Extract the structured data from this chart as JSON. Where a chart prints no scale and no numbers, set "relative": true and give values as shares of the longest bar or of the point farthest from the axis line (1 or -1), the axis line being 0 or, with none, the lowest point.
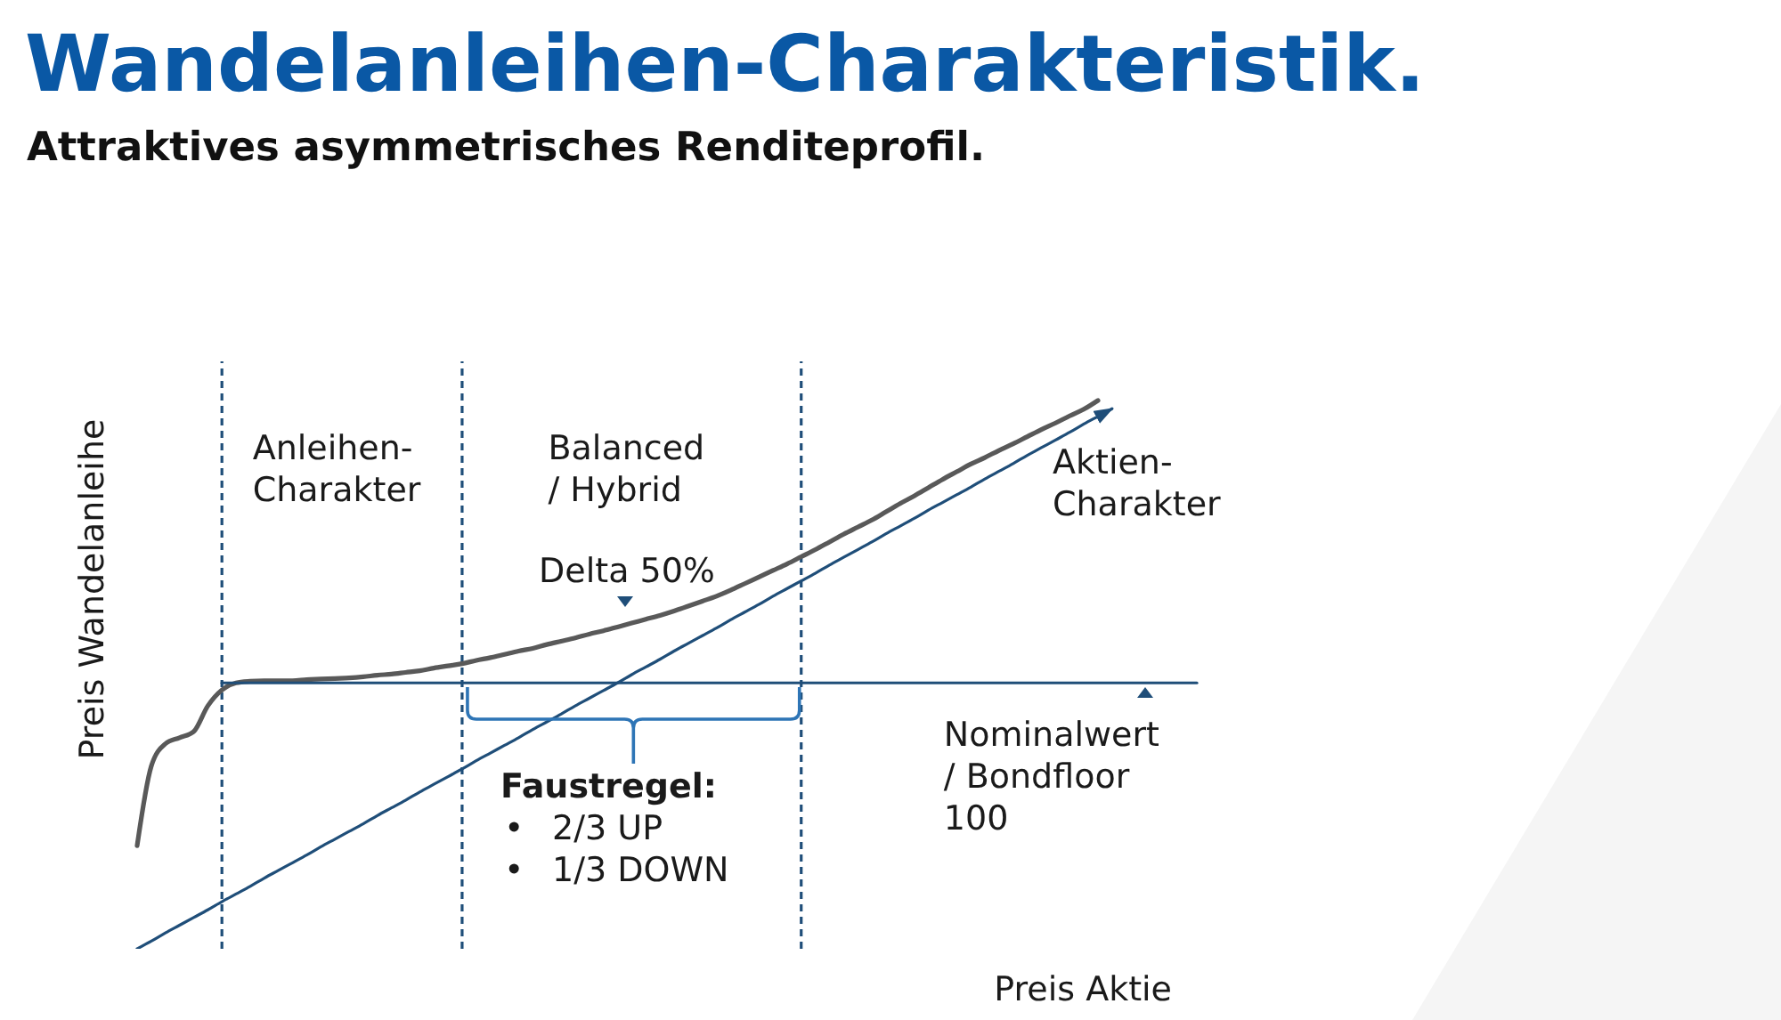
{
  "chart_data": {
    "type": "line",
    "relative": true,
    "title": "Wandelanleihen-Charakteristik.",
    "subtitle": "Attraktives asymmetrisches Renditeprofil.",
    "xlabel": "Preis Aktie",
    "ylabel": "Preis Wandelanleihe",
    "categories": [
      null,
      null,
      null,
      null,
      null,
      null,
      null,
      null,
      null,
      null,
      null,
      null,
      null,
      null,
      null,
      null,
      null,
      null,
      null,
      null,
      null,
      null,
      null,
      null,
      null,
      null,
      null,
      null,
      null,
      null,
      null,
      null,
      null,
      null,
      null,
      null,
      null,
      null,
      null,
      null,
      null,
      null,
      null,
      null,
      null,
      null,
      null,
      null,
      null,
      null,
      null,
      null,
      null,
      null,
      null,
      null,
      null,
      null,
      null,
      null,
      null,
      null,
      null,
      null,
      null,
      null,
      null,
      null,
      null,
      null,
      null,
      null,
      null,
      null,
      null,
      null
    ],
    "series": [
      {
        "color": "#595959",
        "values": [
          0.188,
          0.333,
          0.374,
          0.385,
          0.396,
          0.443,
          0.472,
          0.485,
          0.488,
          0.489,
          0.489,
          0.489,
          0.491,
          0.492,
          0.493,
          0.494,
          0.496,
          0.499,
          0.501,
          0.504,
          0.507,
          0.512,
          0.516,
          0.52,
          0.526,
          0.531,
          0.537,
          0.543,
          0.548,
          0.555,
          0.561,
          0.567,
          0.574,
          0.58,
          0.587,
          0.594,
          0.601,
          0.608,
          0.616,
          0.625,
          0.634,
          0.643,
          0.654,
          0.666,
          0.678,
          0.69,
          0.702,
          0.715,
          0.728,
          0.742,
          0.756,
          0.769,
          0.782,
          0.797,
          0.812,
          0.826,
          0.841,
          0.856,
          0.87,
          0.884,
          0.896,
          0.909,
          0.921,
          0.934,
          0.947,
          0.959,
          0.972,
          0.984,
          1,
          null,
          null,
          null,
          null,
          null,
          null,
          null
        ]
      },
      {
        "color": "#1f4e79",
        "values": [
          0,
          0.014,
          0.029,
          0.043,
          0.057,
          0.071,
          0.086,
          0.1,
          0.114,
          0.129,
          0.143,
          0.157,
          0.171,
          0.186,
          0.2,
          0.214,
          0.228,
          0.243,
          0.257,
          0.271,
          0.286,
          0.3,
          0.314,
          0.328,
          0.343,
          0.357,
          0.371,
          0.385,
          0.4,
          0.414,
          0.428,
          0.443,
          0.457,
          0.471,
          0.485,
          0.5,
          0.514,
          0.528,
          0.543,
          0.557,
          0.571,
          0.585,
          0.6,
          0.614,
          0.628,
          0.643,
          0.657,
          0.671,
          0.685,
          0.7,
          0.714,
          0.728,
          0.742,
          0.757,
          0.771,
          0.785,
          0.8,
          0.814,
          0.828,
          0.842,
          0.857,
          0.871,
          0.885,
          0.9,
          0.914,
          0.928,
          0.942,
          0.957,
          0.971,
          0.985,
          null,
          null,
          null,
          null,
          null,
          null
        ]
      },
      {
        "color": "#1f4e79",
        "values": [
          null,
          null,
          null,
          null,
          null,
          null,
          0.485,
          0.485,
          0.485,
          0.485,
          0.485,
          0.485,
          0.485,
          0.485,
          0.485,
          0.485,
          0.485,
          0.485,
          0.485,
          0.485,
          0.485,
          0.485,
          0.485,
          0.485,
          0.485,
          0.485,
          0.485,
          0.485,
          0.485,
          0.485,
          0.485,
          0.485,
          0.485,
          0.485,
          0.485,
          0.485,
          0.485,
          0.485,
          0.485,
          0.485,
          0.485,
          0.485,
          0.485,
          0.485,
          0.485,
          0.485,
          0.485,
          0.485,
          0.485,
          0.485,
          0.485,
          0.485,
          0.485,
          0.485,
          0.485,
          0.485,
          0.485,
          0.485,
          0.485,
          0.485,
          0.485,
          0.485,
          0.485,
          0.485,
          0.485,
          0.485,
          0.485,
          0.485,
          0.485,
          0.485,
          0.485,
          0.485,
          0.485,
          0.485,
          0.485,
          0.485
        ]
      }
    ],
    "annotations": [
      "Anleihen-\nCharakter",
      "Balanced\n/ Hybrid",
      "Delta 50%",
      "Aktien-\nCharakter",
      "Faustregel:\n• 2/3 UP\n• 1/3 DOWN",
      "Nominalwert\n/ Bondfloor\n100"
    ]
  }
}
